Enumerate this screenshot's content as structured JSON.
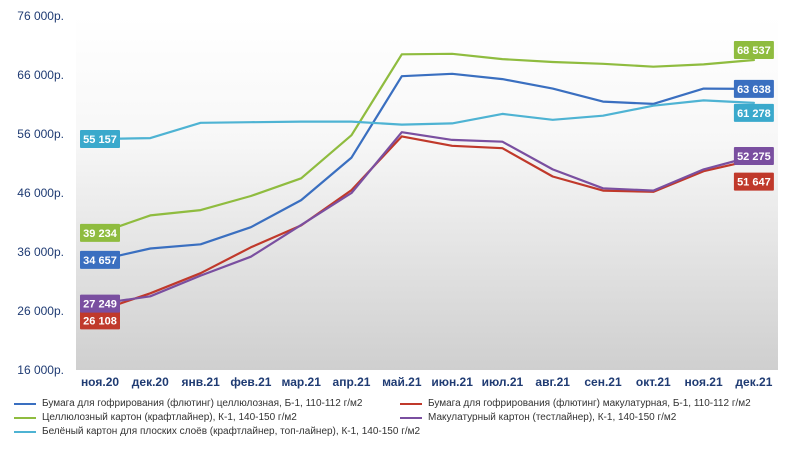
{
  "chart_data": {
    "type": "line",
    "title": "",
    "xlabel": "",
    "ylabel": "",
    "ylim": [
      16000,
      76000
    ],
    "yticks": [
      "16 000р.",
      "26 000р.",
      "36 000р.",
      "46 000р.",
      "56 000р.",
      "66 000р.",
      "76 000р."
    ],
    "categories": [
      "ноя.20",
      "дек.20",
      "янв.21",
      "фев.21",
      "мар.21",
      "апр.21",
      "май.21",
      "июн.21",
      "июл.21",
      "авг.21",
      "сен.21",
      "окт.21",
      "ноя.21",
      "дек.21"
    ],
    "grid": false,
    "background": "gradient white to light grey",
    "legend_position": "bottom",
    "series": [
      {
        "name": "Бумага для гофрирования (флютинг) целлюлозная, Б-1, 110-112 г/м2",
        "color": "#3a6fc0",
        "label_color": "#3a6fc0",
        "values": [
          34657,
          36600,
          37300,
          40200,
          44800,
          52000,
          65800,
          66200,
          65300,
          63700,
          61500,
          61100,
          63700,
          63638
        ],
        "start_label": "34 657",
        "end_label": "63 638"
      },
      {
        "name": "Бумага для гофрирования (флютинг) макулатурная, Б-1, 110-112 г/м2",
        "color": "#c0392b",
        "label_color": "#c0392b",
        "values": [
          26108,
          29000,
          32400,
          36800,
          40500,
          46500,
          55600,
          54000,
          53600,
          48800,
          46400,
          46200,
          49700,
          51647
        ],
        "start_label": "26 108",
        "end_label": "51 647"
      },
      {
        "name": "Целлюлозный картон (крафтлайнер), К-1, 140-150 г/м2",
        "color": "#8fbc3f",
        "label_color": "#8fbc3f",
        "values": [
          39234,
          42200,
          43100,
          45500,
          48500,
          55800,
          69500,
          69600,
          68700,
          68200,
          67900,
          67400,
          67800,
          68537
        ],
        "start_label": "39 234",
        "end_label": "68 537"
      },
      {
        "name": "Макулатурный картон (тестлайнер), К-1, 140-150 г/м2",
        "color": "#7a4fa0",
        "label_color": "#7a4fa0",
        "values": [
          27249,
          28500,
          32000,
          35200,
          40600,
          46000,
          56300,
          55000,
          54700,
          50000,
          46800,
          46400,
          50000,
          52275
        ],
        "start_label": "27 249",
        "end_label": "52 275"
      },
      {
        "name": "Белёный картон для плоских слоёв (крафтлайнер, топ-лайнер), К-1, 140-150 г/м2",
        "color": "#4eb3d3",
        "label_color": "#3aa9cc",
        "values": [
          55157,
          55300,
          57900,
          58000,
          58100,
          58100,
          57600,
          57800,
          59400,
          58400,
          59100,
          60800,
          61700,
          61278
        ],
        "start_label": "55 157",
        "end_label": "61 278"
      }
    ]
  }
}
